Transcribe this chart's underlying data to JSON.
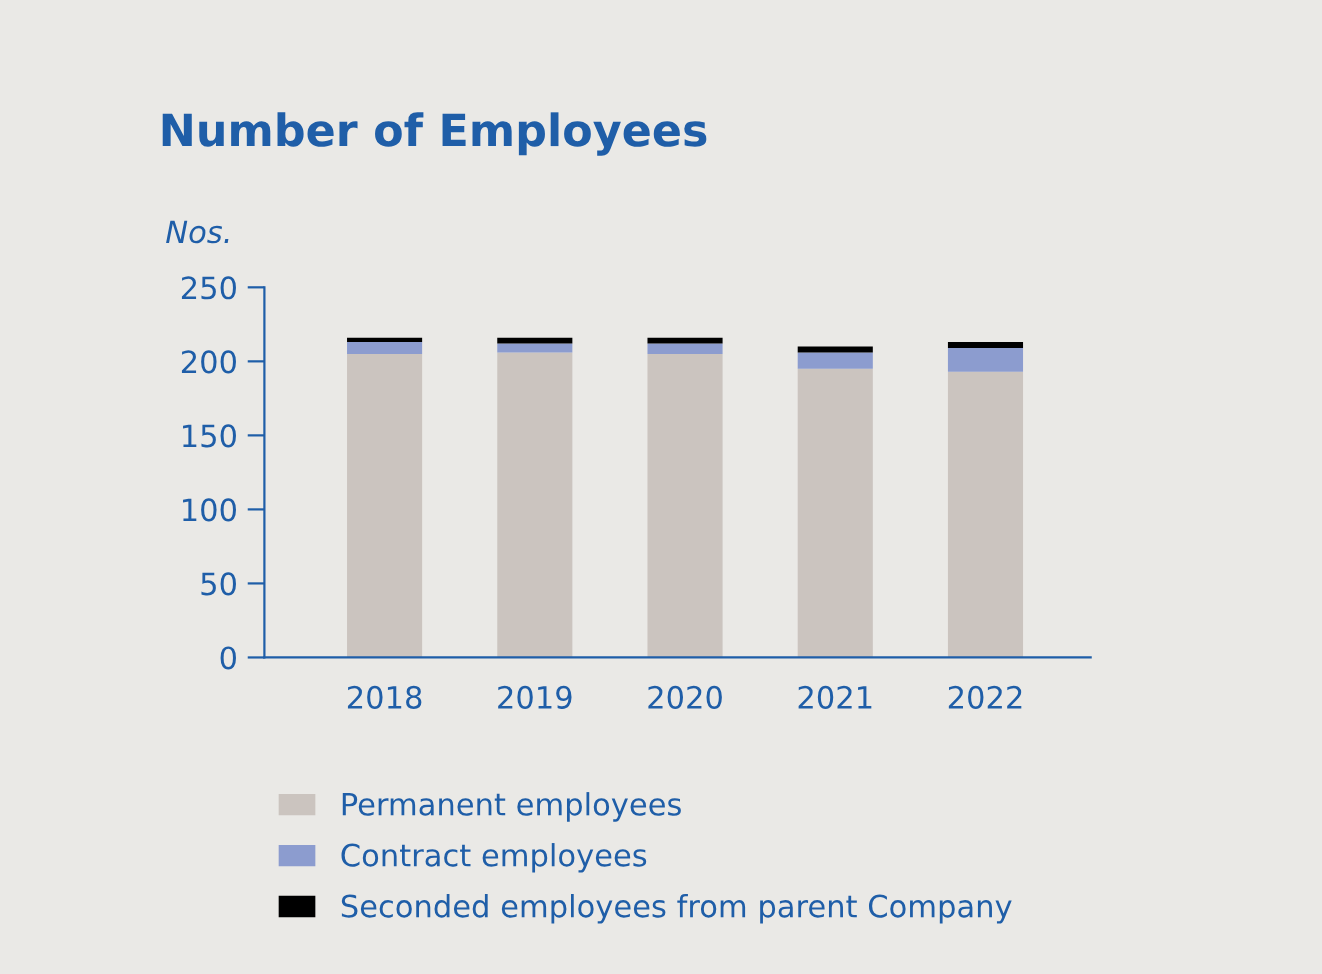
{
  "chart_data": {
    "type": "bar",
    "title": "Number of Employees",
    "ylabel": "Nos.",
    "categories": [
      "2018",
      "2019",
      "2020",
      "2021",
      "2022"
    ],
    "stacked": true,
    "series": [
      {
        "name": "Permanent employees",
        "color": "#cbc4bf",
        "values": [
          205,
          206,
          205,
          195,
          193
        ]
      },
      {
        "name": "Contract employees",
        "color": "#8c9ccf",
        "values": [
          8,
          6,
          7,
          11,
          16
        ]
      },
      {
        "name": "Seconded employees from parent Company",
        "color": "#000000",
        "values": [
          3,
          4,
          4,
          4,
          4
        ]
      }
    ],
    "ylim": [
      0,
      250
    ],
    "yticks": [
      0,
      50,
      100,
      150,
      200,
      250
    ],
    "grid": false,
    "legend": "bottom"
  }
}
